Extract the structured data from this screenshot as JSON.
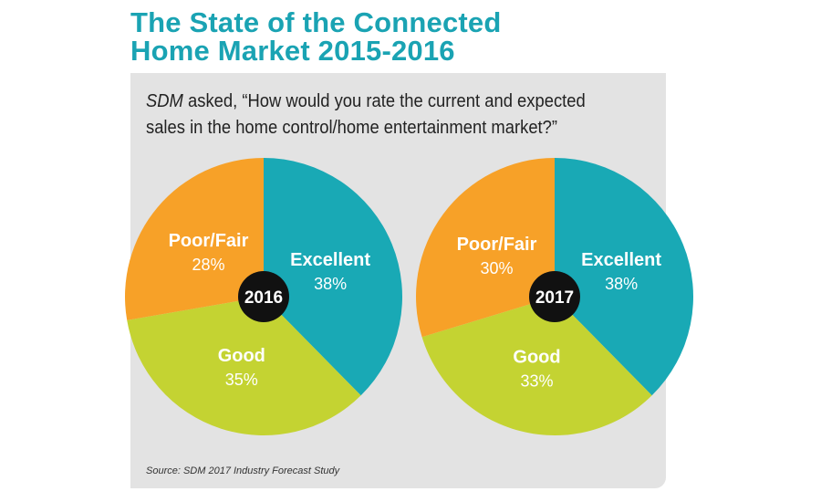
{
  "title_line1": "The State of the Connected",
  "title_line2": "Home Market 2015-2016",
  "question_prefix": "SDM",
  "question_text": " asked, “How would you rate the current and expected sales in the home control/home entertainment market?”",
  "source": "Source: SDM 2017 Industry Forecast Study",
  "colors": {
    "excellent": "#19a9b5",
    "good": "#c4d332",
    "poor_fair": "#f7a128",
    "title": "#1aa3b3",
    "panel": "#e3e3e3",
    "center": "#111111"
  },
  "chart_data": [
    {
      "type": "pie",
      "center_label": "2016",
      "slices": [
        {
          "label": "Excellent",
          "value": 38,
          "value_label": "38%",
          "color": "#19a9b5"
        },
        {
          "label": "Good",
          "value": 35,
          "value_label": "35%",
          "color": "#c4d332"
        },
        {
          "label": "Poor/Fair",
          "value": 28,
          "value_label": "28%",
          "color": "#f7a128"
        }
      ]
    },
    {
      "type": "pie",
      "center_label": "2017",
      "slices": [
        {
          "label": "Excellent",
          "value": 38,
          "value_label": "38%",
          "color": "#19a9b5"
        },
        {
          "label": "Good",
          "value": 33,
          "value_label": "33%",
          "color": "#c4d332"
        },
        {
          "label": "Poor/Fair",
          "value": 30,
          "value_label": "30%",
          "color": "#f7a128"
        }
      ]
    }
  ]
}
